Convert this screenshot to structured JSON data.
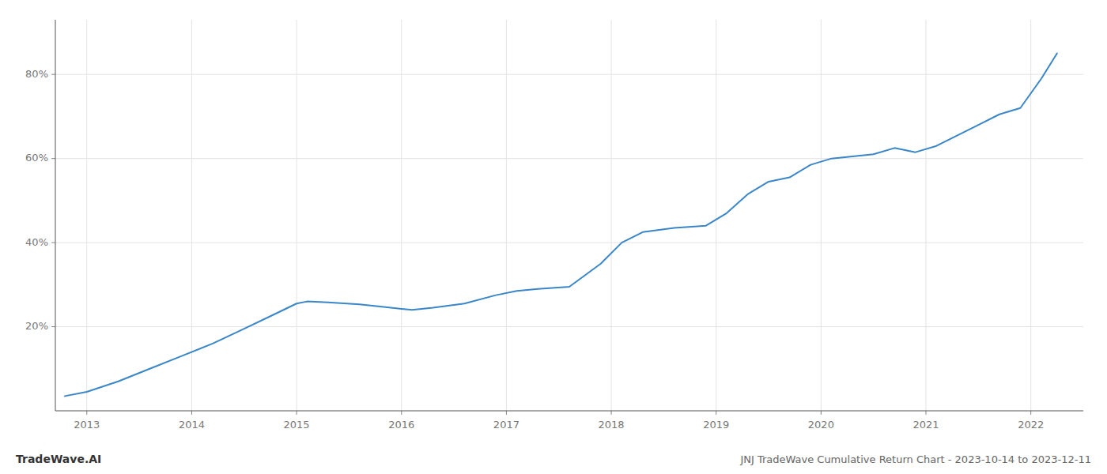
{
  "chart_data": {
    "type": "line",
    "title": "JNJ TradeWave Cumulative Return Chart - 2023-10-14 to 2023-12-11",
    "annotations": [
      "TradeWave.AI"
    ],
    "x": [
      2012.79,
      2013.0,
      2013.3,
      2013.6,
      2013.9,
      2014.2,
      2014.5,
      2014.75,
      2015.0,
      2015.1,
      2015.3,
      2015.6,
      2015.9,
      2016.1,
      2016.3,
      2016.6,
      2016.9,
      2017.1,
      2017.3,
      2017.6,
      2017.9,
      2018.1,
      2018.3,
      2018.6,
      2018.9,
      2019.1,
      2019.3,
      2019.5,
      2019.7,
      2019.9,
      2020.1,
      2020.3,
      2020.5,
      2020.7,
      2020.9,
      2021.1,
      2021.3,
      2021.5,
      2021.7,
      2021.9,
      2022.1,
      2022.25
    ],
    "values": [
      3.5,
      4.5,
      7.0,
      10.0,
      13.0,
      16.0,
      19.5,
      22.5,
      25.5,
      26.0,
      25.8,
      25.3,
      24.5,
      24.0,
      24.5,
      25.5,
      27.5,
      28.5,
      29.0,
      29.5,
      35.0,
      40.0,
      42.5,
      43.5,
      44.0,
      47.0,
      51.5,
      54.5,
      55.5,
      58.5,
      60.0,
      60.5,
      61.0,
      62.5,
      61.5,
      63.0,
      65.5,
      68.0,
      70.5,
      72.0,
      79.0,
      85.0
    ],
    "color": "#3a86c8",
    "xlim": [
      2012.7,
      2022.5
    ],
    "xticks": [
      2013,
      2014,
      2015,
      2016,
      2017,
      2018,
      2019,
      2020,
      2021,
      2022
    ],
    "ylim": [
      0,
      93
    ],
    "yticks": [
      {
        "value": 20,
        "label": "20%"
      },
      {
        "value": 40,
        "label": "40%"
      },
      {
        "value": 60,
        "label": "60%"
      },
      {
        "value": 80,
        "label": "80%"
      }
    ],
    "grid": true
  }
}
